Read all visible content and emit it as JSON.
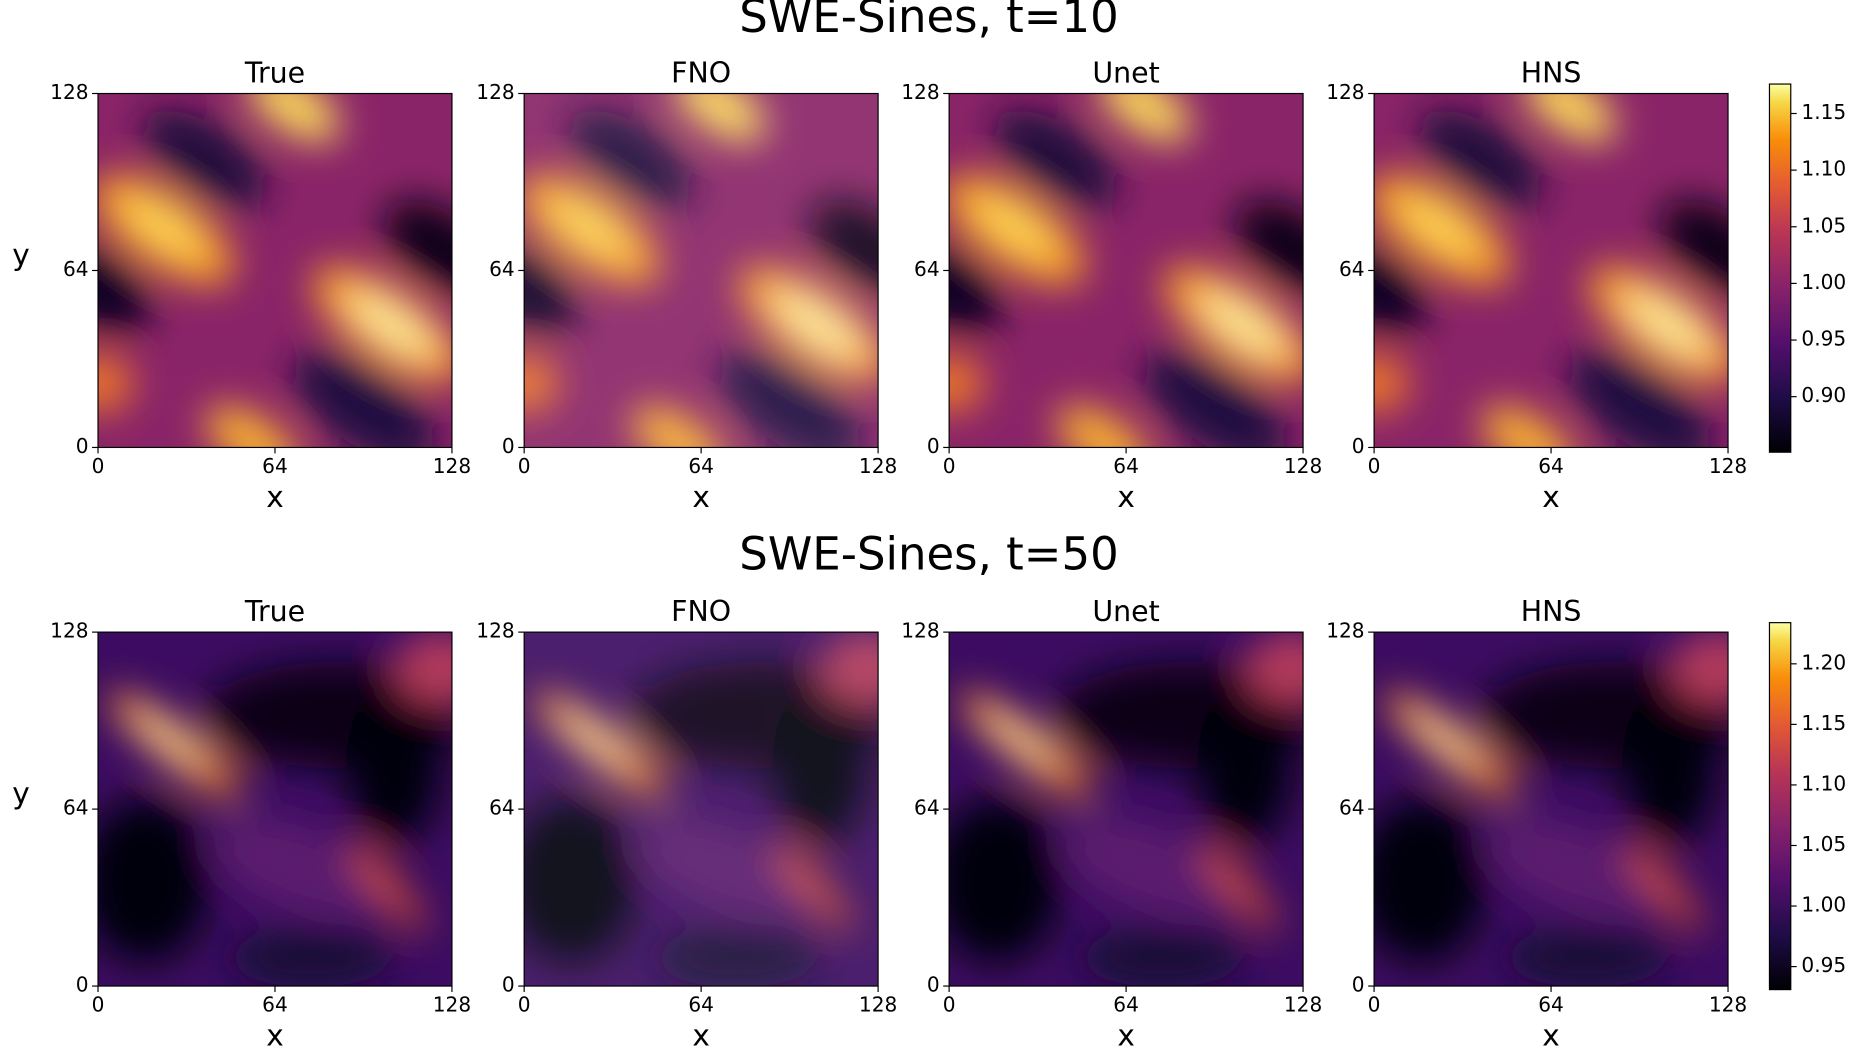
{
  "chart_data": [
    {
      "type": "heatmap",
      "title": "SWE-Sines, t=10",
      "panels": [
        "True",
        "FNO",
        "Unet",
        "HNS"
      ],
      "xlabel": "x",
      "ylabel": "y",
      "xlim": [
        0,
        128
      ],
      "ylim": [
        0,
        128
      ],
      "xticks": [
        0,
        64,
        128
      ],
      "yticks": [
        0,
        64,
        128
      ],
      "colormap": "inferno",
      "clim": [
        0.851,
        1.176
      ],
      "cticks": [
        {
          "value": 0.9,
          "label": "0.90"
        },
        {
          "value": 0.95,
          "label": "0.95"
        },
        {
          "value": 1,
          "label": "1.00"
        },
        {
          "value": 1.05,
          "label": "1.05"
        },
        {
          "value": 1.1,
          "label": "1.10"
        },
        {
          "value": 1.15,
          "label": "1.15"
        }
      ]
    },
    {
      "type": "heatmap",
      "title": "SWE-Sines, t=50",
      "panels": [
        "True",
        "FNO",
        "Unet",
        "HNS"
      ],
      "xlabel": "x",
      "ylabel": "y",
      "xlim": [
        0,
        128
      ],
      "ylim": [
        0,
        128
      ],
      "xticks": [
        0,
        64,
        128
      ],
      "yticks": [
        0,
        64,
        128
      ],
      "colormap": "inferno",
      "clim": [
        0.931,
        1.234
      ],
      "cticks": [
        {
          "value": 0.95,
          "label": "0.95"
        },
        {
          "value": 1,
          "label": "1.00"
        },
        {
          "value": 1.05,
          "label": "1.05"
        },
        {
          "value": 1.1,
          "label": "1.10"
        },
        {
          "value": 1.15,
          "label": "1.15"
        },
        {
          "value": 1.2,
          "label": "1.20"
        }
      ]
    }
  ]
}
